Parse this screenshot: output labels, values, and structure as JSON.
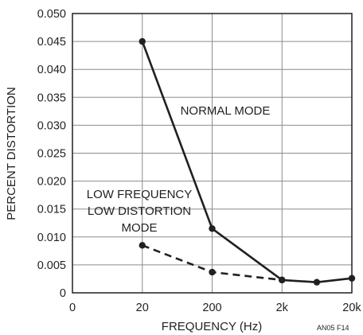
{
  "chart_data": {
    "type": "line",
    "xlabel": "FREQUENCY (Hz)",
    "ylabel": "PERCENT DISTORTION",
    "x_scale": "log",
    "x_ticks": [
      "0",
      "20",
      "200",
      "2k",
      "20k"
    ],
    "y_ticks": [
      "0",
      "0.005",
      "0.010",
      "0.015",
      "0.020",
      "0.025",
      "0.030",
      "0.035",
      "0.040",
      "0.045",
      "0.050"
    ],
    "ylim": [
      0,
      0.05
    ],
    "grid": true,
    "series": [
      {
        "name": "NORMAL MODE",
        "style": "solid",
        "points": [
          [
            20,
            0.045
          ],
          [
            200,
            0.0115
          ],
          [
            2000,
            0.0023
          ],
          [
            6300,
            0.0019
          ],
          [
            20000,
            0.0026
          ]
        ]
      },
      {
        "name": "LOW FREQUENCY LOW DISTORTION MODE",
        "style": "dashed",
        "points": [
          [
            20,
            0.0085
          ],
          [
            200,
            0.0037
          ],
          [
            2000,
            0.0023
          ]
        ]
      }
    ],
    "annotations": {
      "normal": "NORMAL MODE",
      "low_line1": "LOW FREQUENCY",
      "low_line2": "LOW DISTORTION",
      "low_line3": "MODE"
    },
    "figure_code": "AN05 F14",
    "colors": {
      "line": "#231f20",
      "grid": "#8c8c8c"
    }
  }
}
